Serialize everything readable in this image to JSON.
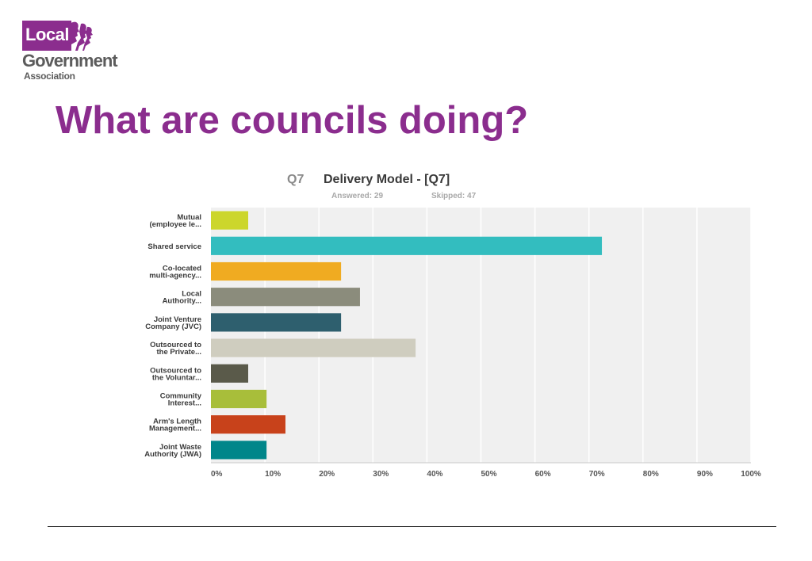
{
  "logo": {
    "local": "Local",
    "government": "Government",
    "association": "Association"
  },
  "page_title": "What are councils doing?",
  "chart_data": {
    "type": "bar",
    "orientation": "horizontal",
    "title_prefix": "Q7",
    "title": "Delivery Model - [Q7]",
    "answered_label": "Answered: 29",
    "skipped_label": "Skipped: 47",
    "categories": [
      [
        "Mutual",
        "(employee le..."
      ],
      [
        "Shared service"
      ],
      [
        "Co-located",
        "multi-agency..."
      ],
      [
        "Local",
        "Authority..."
      ],
      [
        "Joint Venture",
        "Company (JVC)"
      ],
      [
        "Outsourced to",
        "the Private..."
      ],
      [
        "Outsourced to",
        "the Voluntar..."
      ],
      [
        "Community",
        "Interest..."
      ],
      [
        "Arm's Length",
        "Management..."
      ],
      [
        "Joint Waste",
        "Authority (JWA)"
      ]
    ],
    "values": [
      6.9,
      72.4,
      24.1,
      27.6,
      24.1,
      37.9,
      6.9,
      10.3,
      13.8,
      10.3
    ],
    "colors": [
      "#ccd62c",
      "#33bdbf",
      "#f0ab21",
      "#8b8c7c",
      "#2e5f6e",
      "#cfcdbf",
      "#5a5a4a",
      "#a8be3a",
      "#c8421b",
      "#00868a"
    ],
    "xlim": [
      0,
      100
    ],
    "x_ticks": [
      "0%",
      "10%",
      "20%",
      "30%",
      "40%",
      "50%",
      "60%",
      "70%",
      "80%",
      "90%",
      "100%"
    ],
    "grid": true,
    "plot_background": "#f0f0f0",
    "grid_color": "#ffffff"
  },
  "colors": {
    "brand_purple": "#8b2d8e",
    "logo_grey": "#5c5c5c"
  }
}
